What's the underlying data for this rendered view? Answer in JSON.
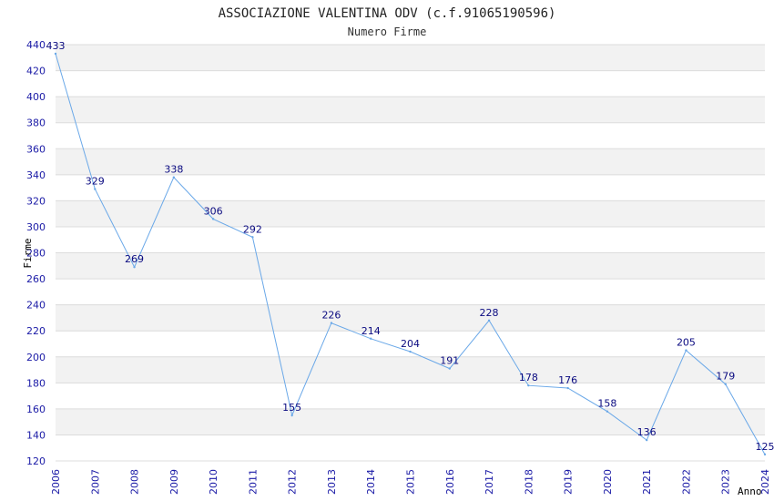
{
  "chart_data": {
    "type": "line",
    "title": "ASSOCIAZIONE VALENTINA ODV (c.f.91065190596)",
    "subtitle": "Numero Firme",
    "xlabel": "Anno",
    "ylabel": "Firme",
    "categories": [
      "2006",
      "2007",
      "2008",
      "2009",
      "2010",
      "2011",
      "2012",
      "2013",
      "2014",
      "2015",
      "2016",
      "2017",
      "2018",
      "2019",
      "2020",
      "2021",
      "2022",
      "2023",
      "2024"
    ],
    "series": [
      {
        "values": [
          433,
          329,
          269,
          338,
          306,
          292,
          155,
          226,
          214,
          204,
          191,
          228,
          178,
          176,
          158,
          136,
          205,
          179,
          125
        ]
      }
    ],
    "ylim": [
      120,
      440
    ],
    "yticks": [
      120,
      140,
      160,
      180,
      200,
      220,
      240,
      260,
      280,
      300,
      320,
      340,
      360,
      380,
      400,
      420,
      440
    ],
    "grid": true,
    "line_color": "#6aa8e8",
    "band_color": "#f2f2f2",
    "grid_color": "#dcdcdc",
    "tick_color": "#1a1aa6"
  }
}
